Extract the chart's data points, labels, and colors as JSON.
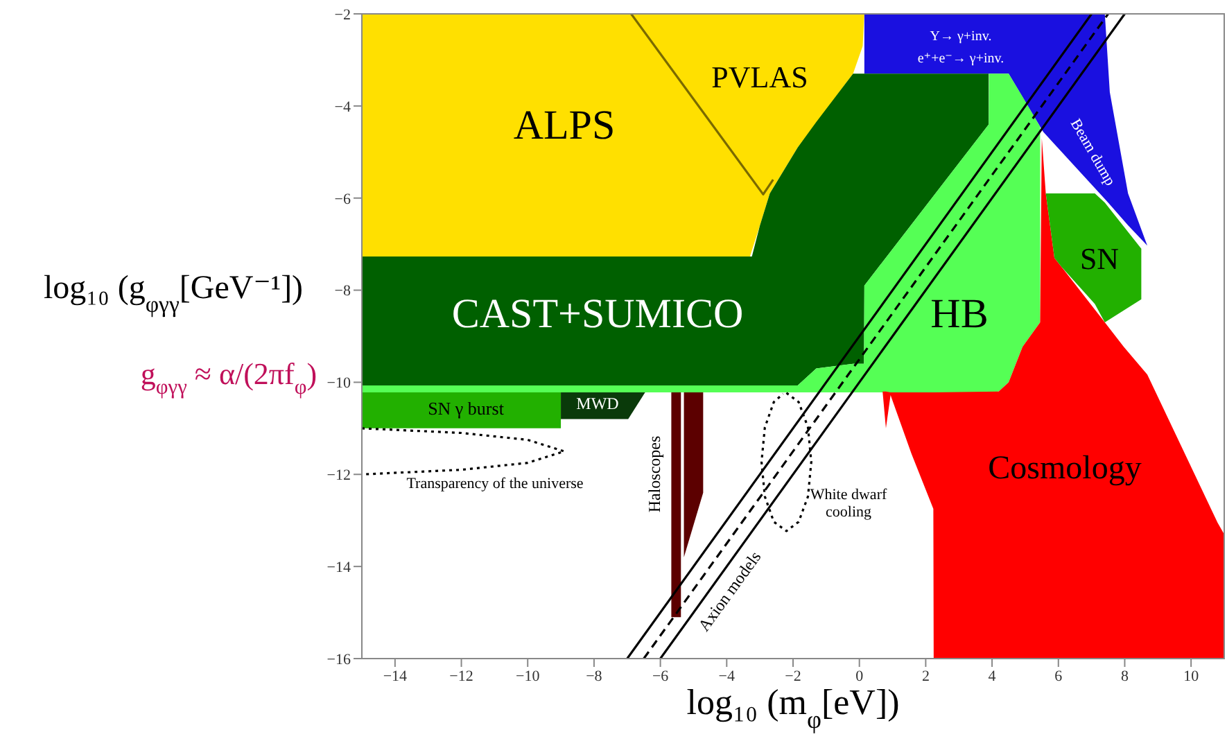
{
  "chart_data": {
    "type": "area",
    "xlabel": "log₁₀ (m$_{φ}$[eV])",
    "ylabel": "log₁₀ (g$_{φγγ}$[GeV⁻¹])",
    "xlim": [
      -15,
      11
    ],
    "ylim": [
      -16,
      -2
    ],
    "xticks": [
      -14,
      -12,
      -10,
      -8,
      -6,
      -4,
      -2,
      0,
      2,
      4,
      6,
      8,
      10
    ],
    "yticks": [
      -16,
      -14,
      -12,
      -10,
      -8,
      -6,
      -4,
      -2
    ],
    "marker": "none",
    "series": [
      {
        "color": "#ffe000",
        "x": [
          -15,
          -3.3,
          -3.0,
          -2.7,
          -1.86,
          -0.19,
          0.1,
          0.15
        ],
        "values": [
          null,
          null,
          null,
          null,
          null,
          null,
          null,
          null
        ],
        "upper": [
          -2,
          -2,
          -2,
          -2,
          -2,
          -2,
          -2,
          -2
        ],
        "lower": [
          -7.27,
          -7.27,
          -6.6,
          -5.9,
          -4.9,
          -3.3,
          -2.7,
          -2.0
        ]
      },
      {
        "type": "line",
        "color": "#7a6a00",
        "x": [
          -6.88,
          -2.9,
          -2.6
        ],
        "values": [
          -2,
          -5.92,
          -5.6
        ],
        "line_style": "solid"
      },
      {
        "color": "#1a10e0",
        "x": [
          0.15,
          4.5,
          5.54,
          7.4,
          7.55,
          8.1,
          8.68
        ],
        "values": [
          null,
          null,
          null,
          null,
          null,
          null,
          null
        ],
        "upper": [
          -2,
          -2,
          -2,
          -2,
          -3.7,
          -5.9,
          -7.03
        ],
        "lower": [
          -3.3,
          -3.3,
          -4.56,
          -6.02,
          -6.14,
          -6.59,
          -7.03
        ]
      },
      {
        "color": "#006000",
        "x": [
          -15,
          -3.24,
          -3.0,
          -2.7,
          -1.86,
          -1.3,
          -0.19,
          0.14,
          0.15,
          3.9
        ],
        "values": [
          null,
          null,
          null,
          null,
          null,
          null,
          null,
          null,
          null,
          null
        ],
        "upper": [
          -7.27,
          -7.27,
          -6.6,
          -5.9,
          -4.9,
          -4.35,
          -3.3,
          -3.3,
          -3.3,
          -3.3
        ],
        "lower": [
          -10.07,
          -10.07,
          -10.07,
          -10.07,
          -10.07,
          -9.7,
          -9.6,
          -9.6,
          -7.9,
          -4.4
        ]
      },
      {
        "color": "#55ff55",
        "x": [
          -15,
          -1.86,
          -1.3,
          -0.19,
          0.14,
          0.15,
          3.9,
          3.91,
          4.2,
          4.5,
          4.92,
          5.45
        ],
        "values": [
          null,
          null,
          null,
          null,
          null,
          null,
          null,
          null,
          null,
          null,
          null,
          null
        ],
        "upper": [
          -10.07,
          -10.07,
          -9.7,
          -9.6,
          -9.6,
          -7.9,
          -4.4,
          -3.3,
          -3.3,
          -3.3,
          -3.8,
          -4.45
        ],
        "lower": [
          -10.22,
          -10.22,
          -10.22,
          -10.22,
          -10.22,
          -10.22,
          -10.22,
          -10.22,
          -10.2,
          -10.0,
          -9.23,
          -8.7
        ]
      },
      {
        "color": "#ff0000",
        "x": [
          0.7,
          0.8,
          0.94,
          1.57,
          2.23,
          2.24,
          4.2,
          4.5,
          4.92,
          5.45,
          5.5,
          5.62,
          5.88,
          6.1,
          7.4,
          7.97,
          8.68,
          10.8,
          11
        ],
        "values": [
          null,
          null,
          null,
          null,
          null,
          null,
          null,
          null,
          null,
          null,
          null,
          null,
          null,
          null,
          null,
          null,
          null,
          null,
          null
        ],
        "upper": [
          -10.2,
          -10.2,
          -10.22,
          -10.22,
          -10.22,
          -10.22,
          -10.2,
          -10.0,
          -9.23,
          -8.7,
          -4.7,
          -5.9,
          -7.3,
          -7.5,
          -8.7,
          -9.23,
          -9.83,
          -13.05,
          -13.3
        ],
        "lower": [
          -10.2,
          -11.0,
          -10.28,
          -11.55,
          -12.75,
          -16,
          -16,
          -16,
          -16,
          -16,
          -16,
          -16,
          -16,
          -16,
          -16,
          -16,
          -16,
          -16,
          -16
        ]
      },
      {
        "color": "#22b000",
        "x": [
          5.62,
          5.88,
          6.1,
          7.1,
          7.4,
          8.5
        ],
        "values": [
          null,
          null,
          null,
          null,
          null,
          null
        ],
        "upper": [
          -5.9,
          -5.9,
          -5.9,
          -5.9,
          -6.1,
          -7.1
        ],
        "lower": [
          -5.9,
          -7.3,
          -7.5,
          -8.3,
          -8.7,
          -8.2
        ]
      },
      {
        "color": "#22b000",
        "x": [
          -15,
          -9
        ],
        "values": [
          null,
          null
        ],
        "upper": [
          -10.22,
          -10.22
        ],
        "lower": [
          -11.0,
          -11.0
        ]
      },
      {
        "color": "#0a3a0a",
        "x": [
          -9,
          -6.97,
          -6.46
        ],
        "values": [
          null,
          null,
          null
        ],
        "upper": [
          -10.22,
          -10.22,
          -10.22
        ],
        "lower": [
          -10.8,
          -10.8,
          -10.22
        ]
      },
      {
        "color": "#5c0000",
        "x": [
          -5.67,
          -5.38
        ],
        "values": [
          null,
          null
        ],
        "upper": [
          -10.22,
          -10.22
        ],
        "lower": [
          -15.1,
          -15.1
        ]
      },
      {
        "color": "#5c0000",
        "x": [
          -5.29,
          -5.0,
          -4.71
        ],
        "values": [
          null,
          null,
          null
        ],
        "upper": [
          -10.22,
          -10.22,
          -10.22
        ],
        "lower": [
          -13.8,
          -13.1,
          -12.4
        ]
      },
      {
        "type": "line",
        "color": "#000000",
        "x": [
          -7,
          7
        ],
        "values": [
          -16,
          -2
        ],
        "line_style": "solid"
      },
      {
        "type": "line",
        "color": "#000000",
        "x": [
          -6,
          8
        ],
        "values": [
          -16,
          -2
        ],
        "line_style": "solid"
      },
      {
        "type": "line",
        "color": "#000000",
        "x": [
          -6.5,
          7.5
        ],
        "values": [
          -16,
          -2
        ],
        "line_style": "dashed"
      },
      {
        "type": "line",
        "color": "#000000",
        "x": [
          -15,
          -12,
          -10,
          -8.9,
          -10,
          -12,
          -15
        ],
        "values": [
          -11,
          -11.1,
          -11.25,
          -11.5,
          -11.75,
          -11.9,
          -12
        ],
        "line_style": "dotted"
      },
      {
        "type": "line",
        "color": "#000000",
        "x": [
          -2.2,
          -1.83,
          -1.55,
          -1.45,
          -1.55,
          -1.83,
          -2.2,
          -2.58,
          -2.85,
          -2.95,
          -2.85,
          -2.58,
          -2.3
        ],
        "values": [
          -10.23,
          -10.43,
          -10.98,
          -11.73,
          -12.48,
          -13.03,
          -13.23,
          -13.03,
          -12.48,
          -11.73,
          -10.98,
          -10.43,
          -10.25
        ],
        "line_style": "dotted"
      }
    ],
    "annotations": [
      "ALPS",
      "PVLAS",
      "CAST+SUMICO",
      "HB",
      "SN",
      "Cosmology",
      "Υ→ γ+inv.",
      "e⁺+e⁻→ γ+inv.",
      "Beam dump",
      "SN γ burst",
      "MWD",
      "Transparency of the universe",
      "Haloscopes",
      "Axion models",
      "White dwarf cooling",
      "g$_{φγγ}$ ≈ α/(2πf$_{φ}$)"
    ]
  }
}
